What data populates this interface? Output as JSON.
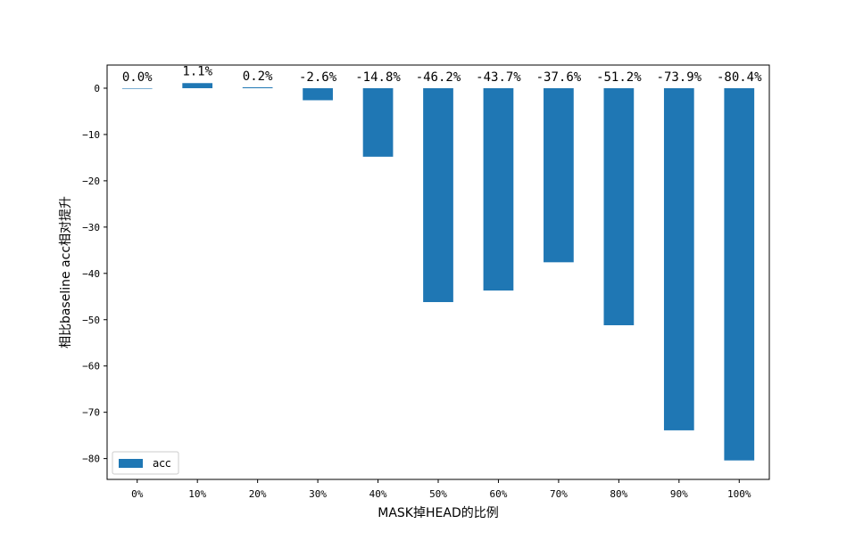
{
  "chart_data": {
    "type": "bar",
    "categories": [
      "0%",
      "10%",
      "20%",
      "30%",
      "40%",
      "50%",
      "60%",
      "70%",
      "80%",
      "90%",
      "100%"
    ],
    "series": [
      {
        "name": "acc",
        "values": [
          0.0,
          1.1,
          0.2,
          -2.6,
          -14.8,
          -46.2,
          -43.7,
          -37.6,
          -51.2,
          -73.9,
          -80.4
        ],
        "color": "#1f77b4"
      }
    ],
    "data_labels": [
      "0.0%",
      "1.1%",
      "0.2%",
      "-2.6%",
      "-14.8%",
      "-46.2%",
      "-43.7%",
      "-37.6%",
      "-51.2%",
      "-73.9%",
      "-80.4%"
    ],
    "title": "",
    "xlabel": "MASK掉HEAD的比例",
    "ylabel": "相比baseline acc相对提升",
    "ylim": [
      -84.5,
      5.0
    ],
    "yticks": [
      0,
      -10,
      -20,
      -30,
      -40,
      -50,
      -60,
      -70,
      -80
    ],
    "ytick_labels": [
      "0",
      "−10",
      "−20",
      "−30",
      "−40",
      "−50",
      "−60",
      "−70",
      "−80"
    ],
    "grid": false,
    "legend": {
      "position": "lower-left",
      "entries": [
        "acc"
      ]
    }
  }
}
